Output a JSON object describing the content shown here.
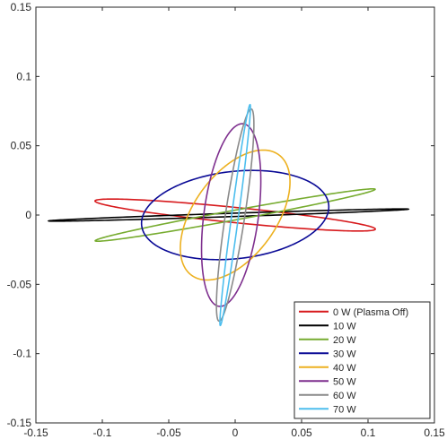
{
  "chart_data": {
    "type": "line",
    "title": "",
    "xlabel": "",
    "ylabel": "",
    "xlim": [
      -0.15,
      0.15
    ],
    "ylim": [
      -0.15,
      0.15
    ],
    "xticks": [
      -0.15,
      -0.1,
      -0.05,
      0,
      0.05,
      0.1,
      0.15
    ],
    "yticks": [
      -0.15,
      -0.1,
      -0.05,
      0,
      0.05,
      0.1,
      0.15
    ],
    "xtick_labels": [
      "-0.15",
      "-0.1",
      "-0.05",
      "0",
      "0.05",
      "0.1",
      "0.15"
    ],
    "ytick_labels": [
      "-0.15",
      "-0.1",
      "-0.05",
      "0",
      "0.05",
      "0.1",
      "0.15"
    ],
    "grid": false,
    "legend_position": "bottom-right",
    "series": [
      {
        "name": "0 W (Plasma Off)",
        "color": "#d7191c",
        "ellipse": {
          "cx": 0.0,
          "cy": 0.0,
          "a": 0.106,
          "b": 0.0055,
          "angle_deg": -5.5
        }
      },
      {
        "name": "10 W",
        "color": "#000000",
        "ellipse": {
          "cx": -0.005,
          "cy": 0.0,
          "a": 0.1355,
          "b": 0.0012,
          "angle_deg": 1.8
        }
      },
      {
        "name": "20 W",
        "color": "#77ac30",
        "ellipse": {
          "cx": 0.0,
          "cy": 0.0,
          "a": 0.107,
          "b": 0.0035,
          "angle_deg": 10.0
        }
      },
      {
        "name": "30 W",
        "color": "#0a0a96",
        "ellipse": {
          "cx": 0.0,
          "cy": 0.0,
          "a": 0.0708,
          "b": 0.0315,
          "angle_deg": 6.0
        }
      },
      {
        "name": "40 W",
        "color": "#edb120",
        "ellipse": {
          "cx": 0.0,
          "cy": 0.0,
          "a": 0.0545,
          "b": 0.0305,
          "angle_deg": 52.0
        }
      },
      {
        "name": "50 W",
        "color": "#7e2f8e",
        "ellipse": {
          "cx": -0.003,
          "cy": 0.0,
          "a": 0.0665,
          "b": 0.0205,
          "angle_deg": 82.0
        }
      },
      {
        "name": "60 W",
        "color": "#8a8a8a",
        "ellipse": {
          "cx": 0.0,
          "cy": 0.0,
          "a": 0.0775,
          "b": 0.0073,
          "angle_deg": 81.0
        }
      },
      {
        "name": "70 W",
        "color": "#4dbeee",
        "ellipse": {
          "cx": 0.0,
          "cy": 0.0,
          "a": 0.0805,
          "b": 0.0026,
          "angle_deg": 82.0
        }
      }
    ]
  }
}
